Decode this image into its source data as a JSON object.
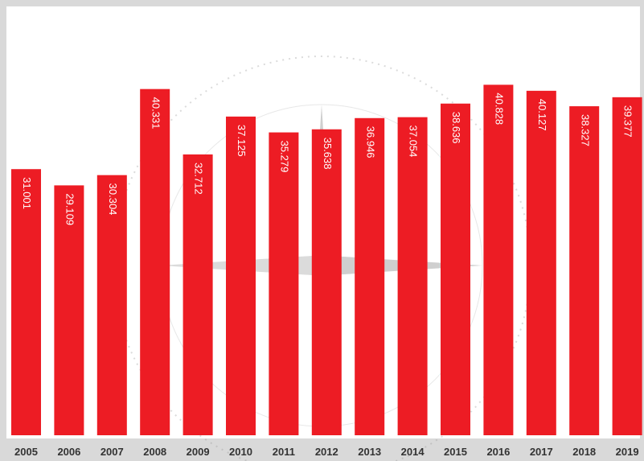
{
  "chart_data": {
    "type": "bar",
    "categories": [
      "2005",
      "2006",
      "2007",
      "2008",
      "2009",
      "2010",
      "2011",
      "2012",
      "2013",
      "2014",
      "2015",
      "2016",
      "2017",
      "2018",
      "2019"
    ],
    "values": [
      31.001,
      29.109,
      30.304,
      40.331,
      32.712,
      37.125,
      35.279,
      35.638,
      36.946,
      37.054,
      38.636,
      40.828,
      40.127,
      38.327,
      39.377
    ],
    "color": "#ed1c24"
  }
}
